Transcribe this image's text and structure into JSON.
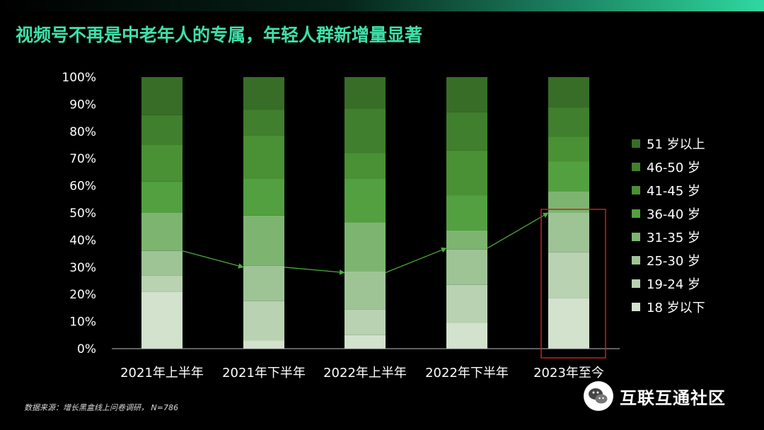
{
  "title": "视频号不再是中老年人的专属，年轻人群新增量显著",
  "source_note": "数据来源：增长黑盒线上问卷调研， N=786",
  "watermark": {
    "text": "互联互通社区",
    "icon": "wechat-icon"
  },
  "colors": {
    "title": "#3fe0a9",
    "highlight_box": "#c8201e",
    "trend_arrow": "#4caa3c",
    "series": [
      "#d2e2cd",
      "#b9d2b1",
      "#9ec496",
      "#7db570",
      "#52a040",
      "#4a9034",
      "#407f2d",
      "#386d27"
    ]
  },
  "chart_data": {
    "type": "bar",
    "stacked": true,
    "categories": [
      "2021年上半年",
      "2021年下半年",
      "2022年上半年",
      "2022年下半年",
      "2023年至今"
    ],
    "series": [
      {
        "name": "18 岁以下",
        "values": [
          21,
          3,
          5,
          9.5,
          18.5
        ]
      },
      {
        "name": "19-24 岁",
        "values": [
          6,
          14.5,
          9.5,
          14,
          17
        ]
      },
      {
        "name": "25-30 岁",
        "values": [
          9,
          13,
          14,
          13,
          14.5
        ]
      },
      {
        "name": "31-35 岁",
        "values": [
          14,
          18.5,
          18,
          7,
          8
        ]
      },
      {
        "name": "36-40 岁",
        "values": [
          11.5,
          13.5,
          16,
          13,
          11
        ]
      },
      {
        "name": "41-45 岁",
        "values": [
          13.5,
          16,
          9.5,
          16.5,
          9
        ]
      },
      {
        "name": "46-50 岁",
        "values": [
          11,
          9.5,
          16.5,
          14,
          11
        ]
      },
      {
        "name": "51 岁以上",
        "values": [
          14,
          12,
          11.5,
          13,
          11
        ]
      }
    ],
    "trend_line": [
      36,
      30,
      28,
      37,
      50
    ],
    "highlight_category": "2023年至今",
    "yticks": [
      "0%",
      "10%",
      "20%",
      "30%",
      "40%",
      "50%",
      "60%",
      "70%",
      "80%",
      "90%",
      "100%"
    ],
    "ylim": [
      0,
      100
    ],
    "legend_position": "right"
  }
}
